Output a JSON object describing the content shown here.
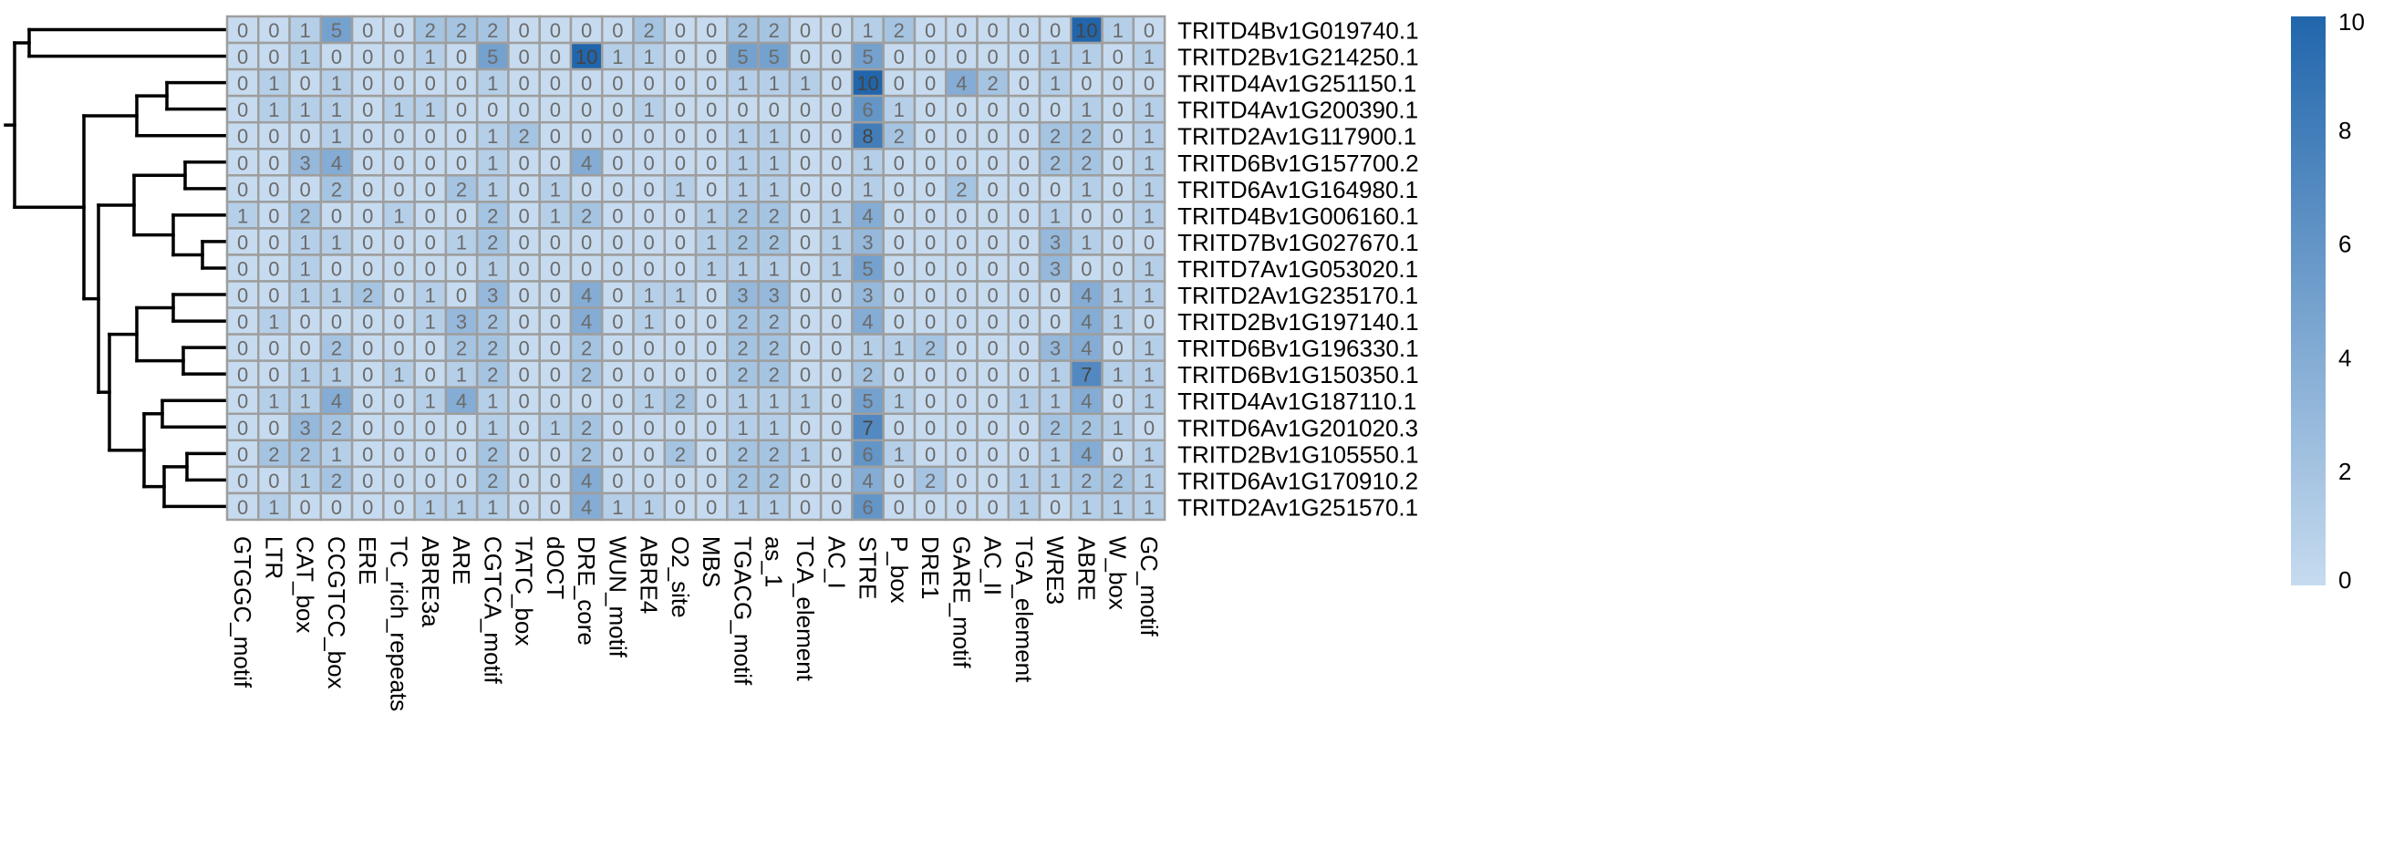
{
  "chart_data": {
    "type": "heatmap",
    "title": "",
    "columns": [
      "GTGGC_motif",
      "LTR",
      "CAT_box",
      "CCGTCC_box",
      "ERE",
      "TC_rich_repeats",
      "ABRE3a",
      "ARE",
      "CGTCA_motif",
      "TATC_box",
      "dOCT",
      "DRE_core",
      "WUN_motif",
      "ABRE4",
      "O2_site",
      "MBS",
      "TGACG_motif",
      "as_1",
      "TCA_element",
      "AC_I",
      "STRE",
      "P_box",
      "DRE1",
      "GARE_motif",
      "AC_II",
      "TGA_element",
      "WRE3",
      "ABRE",
      "W_box",
      "GC_motif"
    ],
    "rows": [
      "TRITD4Bv1G019740.1",
      "TRITD2Bv1G214250.1",
      "TRITD4Av1G251150.1",
      "TRITD4Av1G200390.1",
      "TRITD2Av1G117900.1",
      "TRITD6Bv1G157700.2",
      "TRITD6Av1G164980.1",
      "TRITD4Bv1G006160.1",
      "TRITD7Bv1G027670.1",
      "TRITD7Av1G053020.1",
      "TRITD2Av1G235170.1",
      "TRITD2Bv1G197140.1",
      "TRITD6Bv1G196330.1",
      "TRITD6Bv1G150350.1",
      "TRITD4Av1G187110.1",
      "TRITD6Av1G201020.3",
      "TRITD2Bv1G105550.1",
      "TRITD6Av1G170910.2",
      "TRITD2Av1G251570.1"
    ],
    "values": [
      [
        0,
        0,
        1,
        5,
        0,
        0,
        2,
        2,
        2,
        0,
        0,
        0,
        0,
        2,
        0,
        0,
        2,
        2,
        0,
        0,
        1,
        2,
        0,
        0,
        0,
        0,
        0,
        10,
        1,
        0
      ],
      [
        0,
        0,
        1,
        0,
        0,
        0,
        1,
        0,
        5,
        0,
        0,
        10,
        1,
        1,
        0,
        0,
        5,
        5,
        0,
        0,
        5,
        0,
        0,
        0,
        0,
        0,
        1,
        1,
        0,
        1
      ],
      [
        0,
        1,
        0,
        1,
        0,
        0,
        0,
        0,
        1,
        0,
        0,
        0,
        0,
        0,
        0,
        0,
        1,
        1,
        1,
        0,
        10,
        0,
        0,
        4,
        2,
        0,
        1,
        0,
        0,
        0
      ],
      [
        0,
        1,
        1,
        1,
        0,
        1,
        1,
        0,
        0,
        0,
        0,
        0,
        0,
        1,
        0,
        0,
        0,
        0,
        0,
        0,
        6,
        1,
        0,
        0,
        0,
        0,
        0,
        1,
        0,
        1
      ],
      [
        0,
        0,
        0,
        1,
        0,
        0,
        0,
        0,
        1,
        2,
        0,
        0,
        0,
        0,
        0,
        0,
        1,
        1,
        0,
        0,
        8,
        2,
        0,
        0,
        0,
        0,
        2,
        2,
        0,
        1
      ],
      [
        0,
        0,
        3,
        4,
        0,
        0,
        0,
        0,
        1,
        0,
        0,
        4,
        0,
        0,
        0,
        0,
        1,
        1,
        0,
        0,
        1,
        0,
        0,
        0,
        0,
        0,
        2,
        2,
        0,
        1
      ],
      [
        0,
        0,
        0,
        2,
        0,
        0,
        0,
        2,
        1,
        0,
        1,
        0,
        0,
        0,
        1,
        0,
        1,
        1,
        0,
        0,
        1,
        0,
        0,
        2,
        0,
        0,
        0,
        1,
        0,
        1
      ],
      [
        1,
        0,
        2,
        0,
        0,
        1,
        0,
        0,
        2,
        0,
        1,
        2,
        0,
        0,
        0,
        1,
        2,
        2,
        0,
        1,
        4,
        0,
        0,
        0,
        0,
        0,
        1,
        0,
        0,
        1
      ],
      [
        0,
        0,
        1,
        1,
        0,
        0,
        0,
        1,
        2,
        0,
        0,
        0,
        0,
        0,
        0,
        1,
        2,
        2,
        0,
        1,
        3,
        0,
        0,
        0,
        0,
        0,
        3,
        1,
        0,
        0
      ],
      [
        0,
        0,
        1,
        0,
        0,
        0,
        0,
        0,
        1,
        0,
        0,
        0,
        0,
        0,
        0,
        1,
        1,
        1,
        0,
        1,
        5,
        0,
        0,
        0,
        0,
        0,
        3,
        0,
        0,
        1
      ],
      [
        0,
        0,
        1,
        1,
        2,
        0,
        1,
        0,
        3,
        0,
        0,
        4,
        0,
        1,
        1,
        0,
        3,
        3,
        0,
        0,
        3,
        0,
        0,
        0,
        0,
        0,
        0,
        4,
        1,
        1
      ],
      [
        0,
        1,
        0,
        0,
        0,
        0,
        1,
        3,
        2,
        0,
        0,
        4,
        0,
        1,
        0,
        0,
        2,
        2,
        0,
        0,
        4,
        0,
        0,
        0,
        0,
        0,
        0,
        4,
        1,
        0
      ],
      [
        0,
        0,
        0,
        2,
        0,
        0,
        0,
        2,
        2,
        0,
        0,
        2,
        0,
        0,
        0,
        0,
        2,
        2,
        0,
        0,
        1,
        1,
        2,
        0,
        0,
        0,
        3,
        4,
        0,
        1
      ],
      [
        0,
        0,
        1,
        1,
        0,
        1,
        0,
        1,
        2,
        0,
        0,
        2,
        0,
        0,
        0,
        0,
        2,
        2,
        0,
        0,
        2,
        0,
        0,
        0,
        0,
        0,
        1,
        7,
        1,
        1
      ],
      [
        0,
        1,
        1,
        4,
        0,
        0,
        1,
        4,
        1,
        0,
        0,
        0,
        0,
        1,
        2,
        0,
        1,
        1,
        1,
        0,
        5,
        1,
        0,
        0,
        0,
        1,
        1,
        4,
        0,
        1
      ],
      [
        0,
        0,
        3,
        2,
        0,
        0,
        0,
        0,
        1,
        0,
        1,
        2,
        0,
        0,
        0,
        0,
        1,
        1,
        0,
        0,
        7,
        0,
        0,
        0,
        0,
        0,
        2,
        2,
        1,
        0
      ],
      [
        0,
        2,
        2,
        1,
        0,
        0,
        0,
        0,
        2,
        0,
        0,
        2,
        0,
        0,
        2,
        0,
        2,
        2,
        1,
        0,
        6,
        1,
        0,
        0,
        0,
        0,
        1,
        4,
        0,
        1
      ],
      [
        0,
        0,
        1,
        2,
        0,
        0,
        0,
        0,
        2,
        0,
        0,
        4,
        0,
        0,
        0,
        0,
        2,
        2,
        0,
        0,
        4,
        0,
        2,
        0,
        0,
        1,
        1,
        2,
        2,
        1
      ],
      [
        0,
        1,
        0,
        0,
        0,
        0,
        1,
        1,
        1,
        0,
        0,
        4,
        1,
        1,
        0,
        0,
        1,
        1,
        0,
        0,
        6,
        0,
        0,
        0,
        0,
        1,
        0,
        1,
        1,
        1
      ]
    ],
    "color_scale": {
      "min": 0,
      "max": 10,
      "low_color": "#c6dbef",
      "high_color": "#2166ac",
      "ticks": [
        0,
        2,
        4,
        6,
        8,
        10
      ]
    },
    "cell_border_color": "#9e9e9e"
  }
}
